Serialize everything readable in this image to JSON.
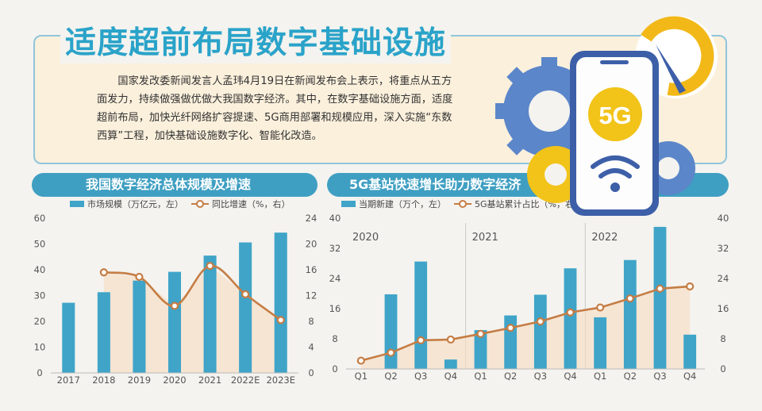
{
  "header": {
    "title": "适度超前布局数字基础设施",
    "intro": "国家发改委新闻发言人孟玮4月19日在新闻发布会上表示，将重点从五方面发力，持续做强做优做大我国数字经济。其中，在数字基础设施方面，适度超前布局，加快光纤网络扩容提速、5G商用部署和规模应用，深入实施“东数西算”工程，加快基础设施数字化、智能化改造。"
  },
  "illustration": {
    "badge": "5G",
    "icons": [
      "gear-icon",
      "phone-icon",
      "wifi-icon",
      "gauge-icon"
    ]
  },
  "colors": {
    "bar": "#3fa4c8",
    "line": "#c57d45",
    "header": "#3f9fc2",
    "title": "#2aa3c9",
    "area": "#f6dcc0"
  },
  "chart_data": [
    {
      "type": "bar",
      "title": "我国数字经济总体规模及增速",
      "legend": {
        "bar": "市场规模（万亿元，左）",
        "line": "同比增速（%，右）"
      },
      "categories": [
        "2017",
        "2018",
        "2019",
        "2020",
        "2021",
        "2022E",
        "2023E"
      ],
      "series": [
        {
          "name": "市场规模（万亿元，左）",
          "type": "bar",
          "axis": "left",
          "values": [
            27.2,
            31.3,
            35.8,
            39.2,
            45.5,
            50.6,
            54.4
          ]
        },
        {
          "name": "同比增速（%，右）",
          "type": "line",
          "axis": "right",
          "values": [
            null,
            15.6,
            14.9,
            10.4,
            16.6,
            12.2,
            8.2
          ]
        }
      ],
      "yticks_left": [
        "0",
        "10",
        "20",
        "30",
        "40",
        "50",
        "60"
      ],
      "yticks_right": [
        "0",
        "4",
        "8",
        "12",
        "16",
        "20",
        "24"
      ],
      "ylim_left": [
        0,
        60
      ],
      "ylim_right": [
        0,
        24
      ],
      "grid": false,
      "legend_position": "top"
    },
    {
      "type": "bar",
      "title": "5G基站快速增长助力数字经济",
      "legend": {
        "bar": "当期新建（万个，左）",
        "line": "5G基站累计占比（%，右）"
      },
      "groups": [
        "2020",
        "2021",
        "2022"
      ],
      "categories": [
        "Q1",
        "Q2",
        "Q3",
        "Q4",
        "Q1",
        "Q2",
        "Q3",
        "Q4",
        "Q1",
        "Q2",
        "Q3",
        "Q4"
      ],
      "series": [
        {
          "name": "当期新建（万个，左）",
          "type": "bar",
          "axis": "left",
          "values": [
            0,
            19.8,
            28.5,
            2.5,
            10.3,
            14.2,
            19.7,
            26.7,
            13.7,
            28.9,
            37.7,
            9.1
          ]
        },
        {
          "name": "5G基站累计占比（%，右）",
          "type": "line",
          "axis": "right",
          "values": [
            2.2,
            4.3,
            7.6,
            7.8,
            9.3,
            10.9,
            12.6,
            15.0,
            16.3,
            18.7,
            21.3,
            21.9
          ]
        }
      ],
      "yticks_left": [
        "0",
        "8",
        "16",
        "24",
        "32",
        "40"
      ],
      "yticks_right": [
        "0",
        "8",
        "16",
        "24",
        "32",
        "40"
      ],
      "ylim_left": [
        0,
        40
      ],
      "ylim_right": [
        0,
        40
      ],
      "grid": false,
      "legend_position": "top"
    }
  ]
}
